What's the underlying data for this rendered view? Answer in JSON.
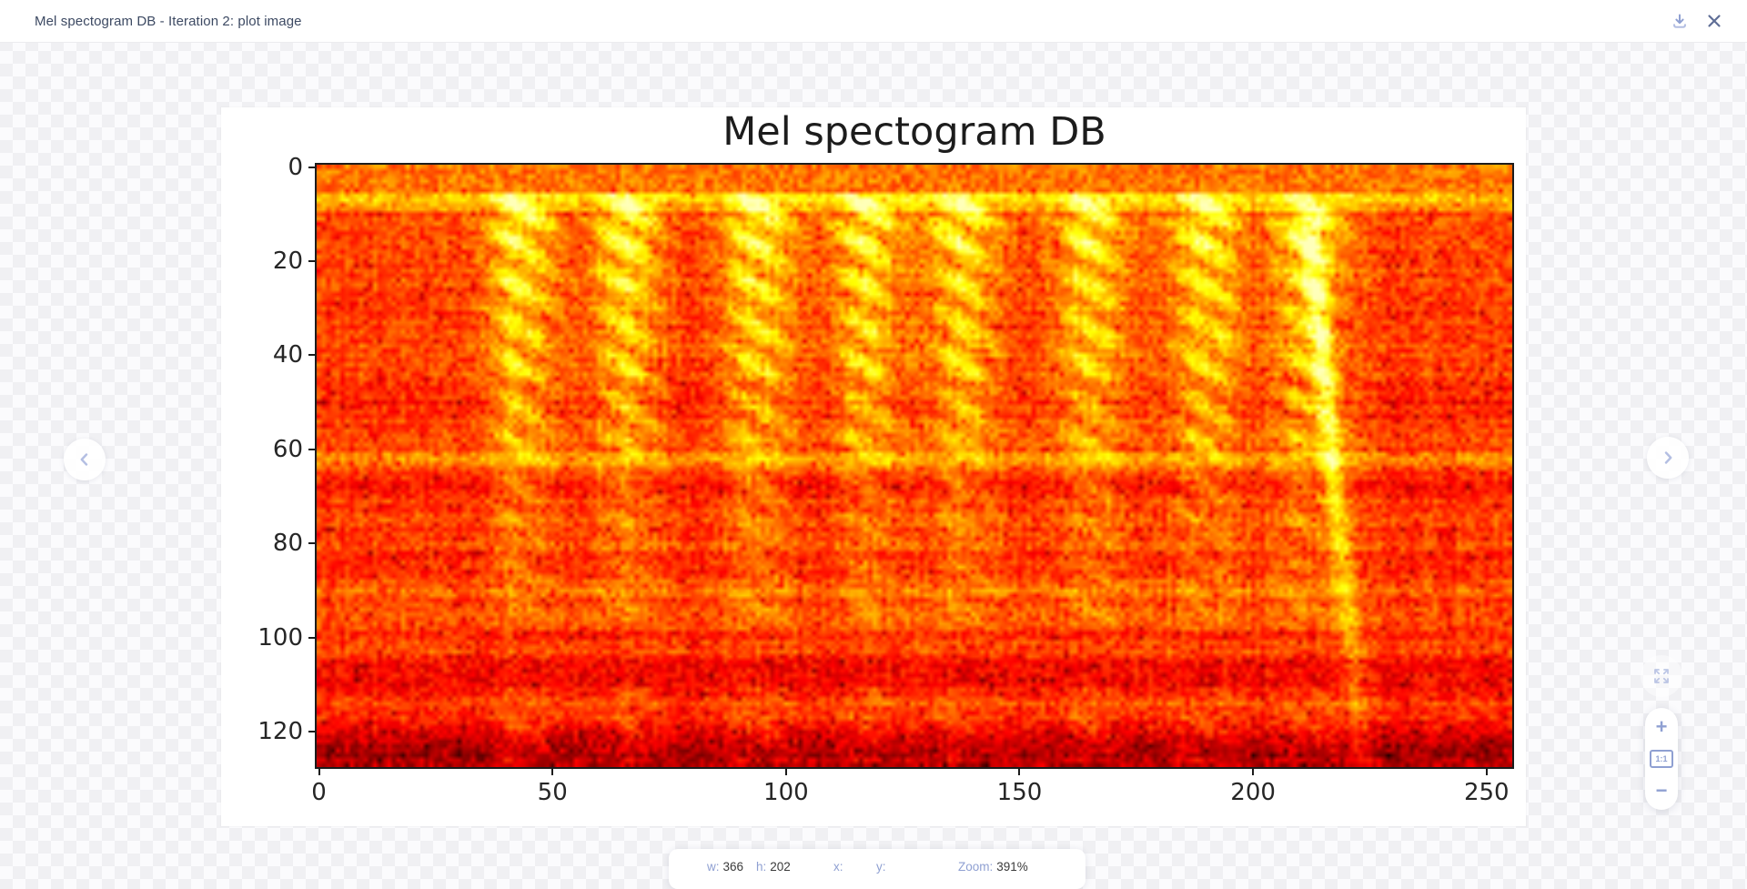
{
  "colors": {
    "accent": "#8fa0d2",
    "accent_soft": "#b3bee2",
    "close_icon": "#5f6e96",
    "titlebar_text": "#3d4a63",
    "checker_dark": "#f0f0f3",
    "checker_light": "#fbfbfd"
  },
  "header": {
    "title": "Mel spectogram DB - Iteration 2: plot image"
  },
  "controls": {
    "zoom_in_label": "+",
    "zoom_out_label": "−",
    "actual_size_label": "1:1"
  },
  "statusbar": {
    "items": [
      {
        "label": "w:",
        "value": "366"
      },
      {
        "label": "h:",
        "value": "202"
      },
      {
        "label": "x:",
        "value": ""
      },
      {
        "label": "y:",
        "value": ""
      },
      {
        "label": "Zoom:",
        "value": "391%"
      }
    ]
  },
  "chart_data": {
    "type": "heatmap",
    "title": "Mel spectogram DB",
    "xlabel": "",
    "ylabel": "",
    "x_ticks": [
      0,
      50,
      100,
      150,
      200,
      250
    ],
    "y_ticks": [
      0,
      20,
      40,
      60,
      80,
      100,
      120
    ],
    "n_frames": 256,
    "n_mels": 128,
    "x_range": [
      -0.5,
      255.5
    ],
    "y_range": [
      -0.5,
      127.5
    ],
    "y_axis_inverted": true,
    "colormap": "hot",
    "grid": false,
    "legend": false,
    "content_description": "Mel spectrogram in dB, hot colormap: red noisy background, bright orange full-width band near mel bin 7, eight repeated bright harmonic syllable stacks, fainter echoes of each stack below mel bin 60, horizontal bright line near bin 62, darker bands near bins 50/68/84/108/124, final syllable trails downward to the bottom right",
    "syllable_centers_frames": [
      43,
      66,
      94,
      117,
      138,
      165,
      190,
      212
    ],
    "syllable_halfwidth_frames": 7.5,
    "harmonic_band_period_bins": 8.5,
    "harmonic_band_slope": 0.6,
    "bright_band_top_bin": 7,
    "bright_line_bins": [
      62,
      90,
      103
    ],
    "dark_band_bins": [
      50,
      68,
      84,
      108,
      124
    ],
    "descending_streak": {
      "start_frame": 212,
      "slope_frames_per_bin": 0.1,
      "from_bin": 12,
      "to_bin": 127
    }
  }
}
